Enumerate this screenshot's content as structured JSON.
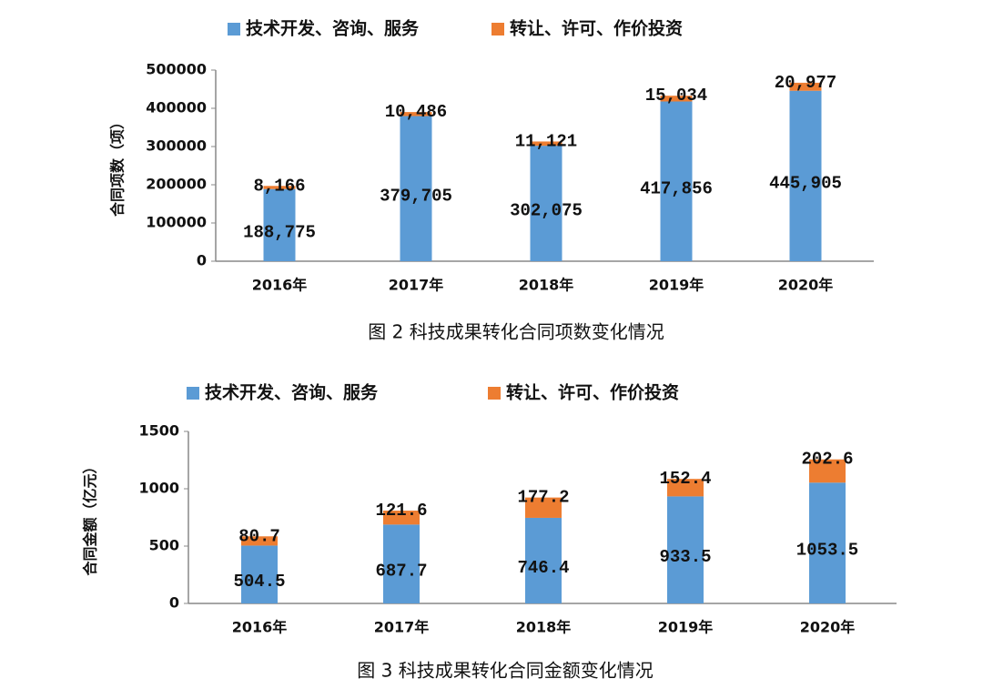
{
  "chart_data": [
    {
      "type": "stacked_bar",
      "caption": "图 2 科技成果转化合同项数变化情况",
      "y_label": "合同项数（项）",
      "categories": [
        "2016年",
        "2017年",
        "2018年",
        "2019年",
        "2020年"
      ],
      "series": [
        {
          "name": "技术开发、咨询、服务",
          "color": "#5b9bd5",
          "values": [
            188775,
            379705,
            302075,
            417856,
            445905
          ],
          "value_labels": [
            "188,775",
            "379,705",
            "302,075",
            "417,856",
            "445,905"
          ]
        },
        {
          "name": "转让、许可、作价投资",
          "color": "#ed7d31",
          "values": [
            8166,
            10486,
            11121,
            15034,
            20977
          ],
          "value_labels": [
            "8,166",
            "10,486",
            "11,121",
            "15,034",
            "20,977"
          ]
        }
      ],
      "ylim": [
        0,
        500000
      ],
      "yticks": [
        0,
        100000,
        200000,
        300000,
        400000,
        500000
      ],
      "grid": false,
      "legend": "top"
    },
    {
      "type": "stacked_bar",
      "caption": "图 3 科技成果转化合同金额变化情况",
      "y_label": "合同金额（亿元）",
      "categories": [
        "2016年",
        "2017年",
        "2018年",
        "2019年",
        "2020年"
      ],
      "series": [
        {
          "name": "技术开发、咨询、服务",
          "color": "#5b9bd5",
          "values": [
            504.5,
            687.7,
            746.4,
            933.5,
            1053.5
          ]
        },
        {
          "name": "转让、许可、作价投资",
          "color": "#ed7d31",
          "values": [
            80.7,
            121.6,
            177.2,
            152.4,
            202.6
          ]
        }
      ],
      "ylim": [
        0,
        1500
      ],
      "yticks": [
        0,
        500,
        1000,
        1500
      ],
      "grid": false,
      "legend": "top"
    }
  ]
}
